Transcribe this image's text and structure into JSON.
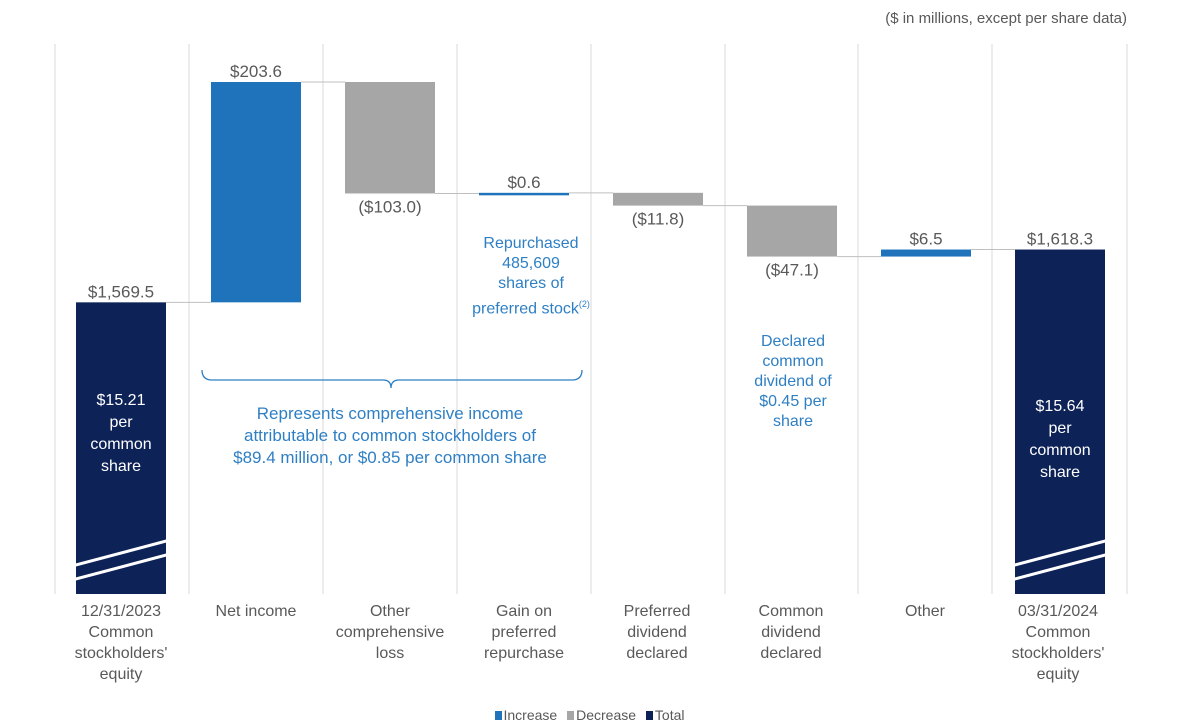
{
  "note": "($ in millions, except per share data)",
  "colors": {
    "increase": "#1f73bb",
    "decrease": "#a6a6a6",
    "total": "#0d2257",
    "annotation": "#2e7fc4",
    "text": "#595959",
    "grid": "#d9d9d9"
  },
  "chart_data": {
    "type": "waterfall",
    "title": "",
    "ylim": [
      1300,
      1850
    ],
    "ylabel": "",
    "categories": [
      "12/31/2023 Common stockholders' equity",
      "Net income",
      "Other comprehensive loss",
      "Gain on preferred repurchase",
      "Preferred dividend declared",
      "Common dividend declared",
      "Other",
      "03/31/2024 Common stockholders' equity"
    ],
    "points": [
      {
        "category": "12/31/2023 Common stockholders' equity",
        "kind": "total",
        "value": 1569.5,
        "label": "$1,569.5"
      },
      {
        "category": "Net income",
        "kind": "increase",
        "value": 203.6,
        "label": "$203.6"
      },
      {
        "category": "Other comprehensive loss",
        "kind": "decrease",
        "value": -103.0,
        "label": "($103.0)"
      },
      {
        "category": "Gain on preferred repurchase",
        "kind": "increase",
        "value": 0.6,
        "label": "$0.6"
      },
      {
        "category": "Preferred dividend declared",
        "kind": "decrease",
        "value": -11.8,
        "label": "($11.8)"
      },
      {
        "category": "Common dividend declared",
        "kind": "decrease",
        "value": -47.1,
        "label": "($47.1)"
      },
      {
        "category": "Other",
        "kind": "increase",
        "value": 6.5,
        "label": "$6.5"
      },
      {
        "category": "03/31/2024 Common stockholders' equity",
        "kind": "total",
        "value": 1618.3,
        "label": "$1,618.3"
      }
    ],
    "legend": [
      "Increase",
      "Decrease",
      "Total"
    ],
    "legend_position": "bottom-center"
  },
  "category_lines": [
    [
      "12/31/2023",
      "Common",
      "stockholders'",
      "equity"
    ],
    [
      "Net income"
    ],
    [
      "Other",
      "comprehensive",
      "loss"
    ],
    [
      "Gain on",
      "preferred",
      "repurchase"
    ],
    [
      "Preferred",
      "dividend",
      "declared"
    ],
    [
      "Common",
      "dividend",
      "declared"
    ],
    [
      "Other"
    ],
    [
      "03/31/2024",
      "Common",
      "stockholders'",
      "equity"
    ]
  ],
  "per_share": {
    "start": [
      "$15.21",
      "per",
      "common",
      "share"
    ],
    "end": [
      "$15.64",
      "per",
      "common",
      "share"
    ]
  },
  "annotations": {
    "repurchase": [
      "Repurchased",
      "485,609",
      "shares of",
      "preferred stock"
    ],
    "repurchase_sup": "(2)",
    "comprehensive": [
      "Represents comprehensive income",
      "attributable to common stockholders of",
      "$89.4 million, or $0.85 per common share"
    ],
    "dividend": [
      "Declared",
      "common",
      "dividend of",
      "$0.45 per",
      "share"
    ]
  }
}
